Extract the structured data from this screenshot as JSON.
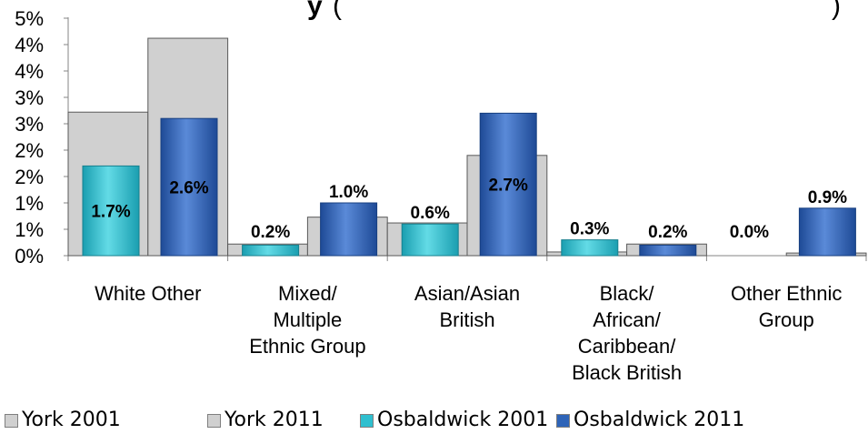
{
  "chart_data": {
    "type": "bar",
    "title": "y",
    "title_suffix": "(",
    "title_suffix_end": ")",
    "categories": [
      [
        "White Other"
      ],
      [
        "Mixed/",
        "Multiple",
        "Ethnic Group"
      ],
      [
        "Asian/Asian",
        "British"
      ],
      [
        "Black/",
        "African/",
        "Caribbean/",
        "Black British"
      ],
      [
        "Other Ethnic",
        "Group"
      ]
    ],
    "yticks": [
      "0%",
      "1%",
      "1%",
      "2%",
      "2%",
      "3%",
      "3%",
      "4%",
      "4%",
      "5%"
    ],
    "ylim": [
      0,
      0.045
    ],
    "series": [
      {
        "name": "York 2001",
        "color": "#d0d0d0",
        "values": [
          0.0272,
          0.0022,
          0.0062,
          0.0007,
          0.0
        ]
      },
      {
        "name": "York 2011",
        "color": "#d0d0d0",
        "values": [
          0.0412,
          0.0073,
          0.019,
          0.0022,
          0.0005
        ]
      },
      {
        "name": "Osbaldwick 2001",
        "color": "#2fbfcf",
        "values": [
          0.017,
          0.002,
          0.006,
          0.003,
          0.0
        ]
      },
      {
        "name": "Osbaldwick 2011",
        "color": "#2e64b8",
        "values": [
          0.026,
          0.01,
          0.027,
          0.002,
          0.009
        ]
      }
    ],
    "data_labels": {
      "Osbaldwick 2001": [
        "1.7%",
        "0.2%",
        "0.6%",
        "0.3%",
        "0.0%"
      ],
      "Osbaldwick 2011": [
        "2.6%",
        "1.0%",
        "2.7%",
        "0.2%",
        "0.9%"
      ]
    },
    "legend_position": "bottom",
    "grid": false
  },
  "legend": [
    {
      "label": "York 2001",
      "color": "#d0d0d0"
    },
    {
      "label": "York 2011",
      "color": "#d0d0d0"
    },
    {
      "label": "Osbaldwick 2001",
      "color": "#2fbfcf"
    },
    {
      "label": "Osbaldwick 2011",
      "color": "#2e64b8"
    }
  ]
}
